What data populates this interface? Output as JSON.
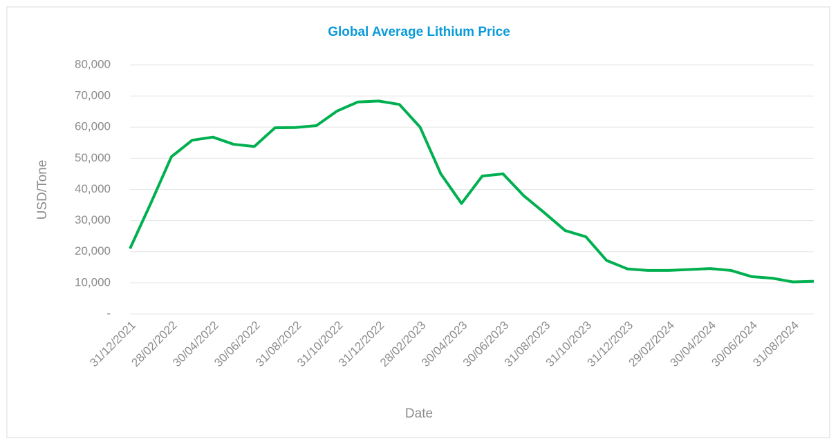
{
  "chart_data": {
    "type": "line",
    "title": "Global Average Lithium Price",
    "x_label": "Date",
    "y_label": "USD/Tone",
    "categories": [
      "31/12/2021",
      null,
      "28/02/2022",
      null,
      "30/04/2022",
      null,
      "30/06/2022",
      null,
      "31/08/2022",
      null,
      "31/10/2022",
      null,
      "31/12/2022",
      null,
      "28/02/2023",
      null,
      "30/04/2023",
      null,
      "30/06/2023",
      null,
      "31/08/2023",
      null,
      "31/10/2023",
      null,
      "31/12/2023",
      null,
      "29/02/2024",
      null,
      "30/04/2024",
      null,
      "30/06/2024",
      null,
      "31/08/2024",
      null
    ],
    "series": [
      {
        "name": "Lithium Price",
        "color": "#00b050",
        "values": [
          21000,
          35500,
          50500,
          55800,
          56800,
          54500,
          53800,
          59800,
          59900,
          60500,
          65200,
          68100,
          68400,
          67300,
          60000,
          45000,
          35500,
          44300,
          45000,
          38000,
          32500,
          26800,
          24800,
          17200,
          14500,
          14000,
          14000,
          14300,
          14600,
          14000,
          12000,
          11500,
          10300,
          10500
        ]
      }
    ],
    "ylim": [
      0,
      80000
    ],
    "yticks": [
      {
        "value": 0,
        "label": "-"
      },
      {
        "value": 10000,
        "label": "10,000"
      },
      {
        "value": 20000,
        "label": "20,000"
      },
      {
        "value": 30000,
        "label": "30,000"
      },
      {
        "value": 40000,
        "label": "40,000"
      },
      {
        "value": 50000,
        "label": "50,000"
      },
      {
        "value": 60000,
        "label": "60,000"
      },
      {
        "value": 70000,
        "label": "70,000"
      },
      {
        "value": 80000,
        "label": "80,000"
      }
    ],
    "grid": true
  }
}
